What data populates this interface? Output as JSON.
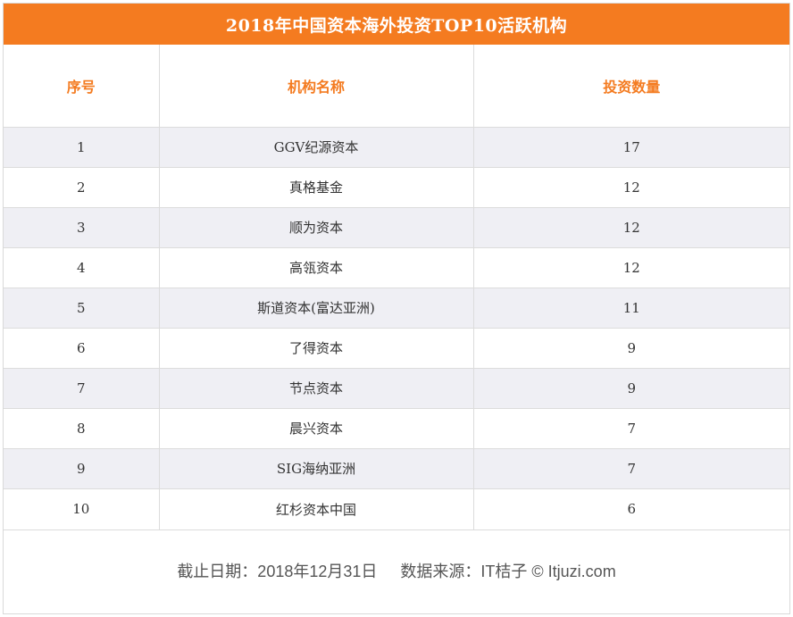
{
  "title": "2018年中国资本海外投资TOP10活跃机构",
  "columns": [
    "序号",
    "机构名称",
    "投资数量"
  ],
  "rows": [
    {
      "rank": "1",
      "name": "GGV纪源资本",
      "count": "17"
    },
    {
      "rank": "2",
      "name": "真格基金",
      "count": "12"
    },
    {
      "rank": "3",
      "name": "顺为资本",
      "count": "12"
    },
    {
      "rank": "4",
      "name": "高瓴资本",
      "count": "12"
    },
    {
      "rank": "5",
      "name": "斯道资本(富达亚洲)",
      "count": "11"
    },
    {
      "rank": "6",
      "name": "了得资本",
      "count": "9"
    },
    {
      "rank": "7",
      "name": "节点资本",
      "count": "9"
    },
    {
      "rank": "8",
      "name": "晨兴资本",
      "count": "7"
    },
    {
      "rank": "9",
      "name": "SIG海纳亚洲",
      "count": "7"
    },
    {
      "rank": "10",
      "name": "红杉资本中国",
      "count": "6"
    }
  ],
  "footer": {
    "date": "截止日期：2018年12月31日",
    "source": "数据来源：IT桔子 © Itjuzi.com"
  },
  "colors": {
    "accent": "#f47b20",
    "stripe": "#efeff4"
  }
}
